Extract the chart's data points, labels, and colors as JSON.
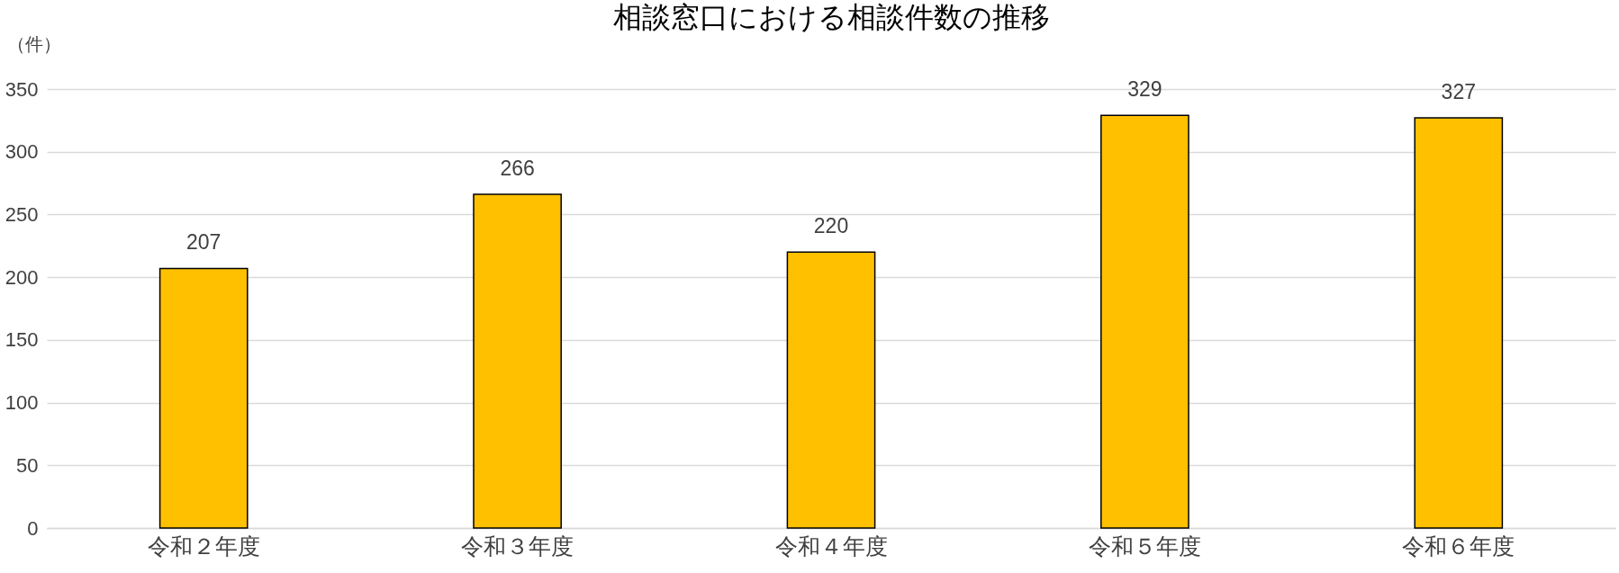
{
  "chart_data": {
    "type": "bar",
    "title": "相談窓口における相談件数の推移",
    "ylabel": "（件）",
    "categories": [
      "令和２年度",
      "令和３年度",
      "令和４年度",
      "令和５年度",
      "令和６年度"
    ],
    "values": [
      207,
      266,
      220,
      329,
      327
    ],
    "color": "#ffc000",
    "ylim": [
      0,
      350
    ],
    "yticks": [
      0,
      50,
      100,
      150,
      200,
      250,
      300,
      350
    ],
    "grid": "y",
    "data_labels": true
  }
}
